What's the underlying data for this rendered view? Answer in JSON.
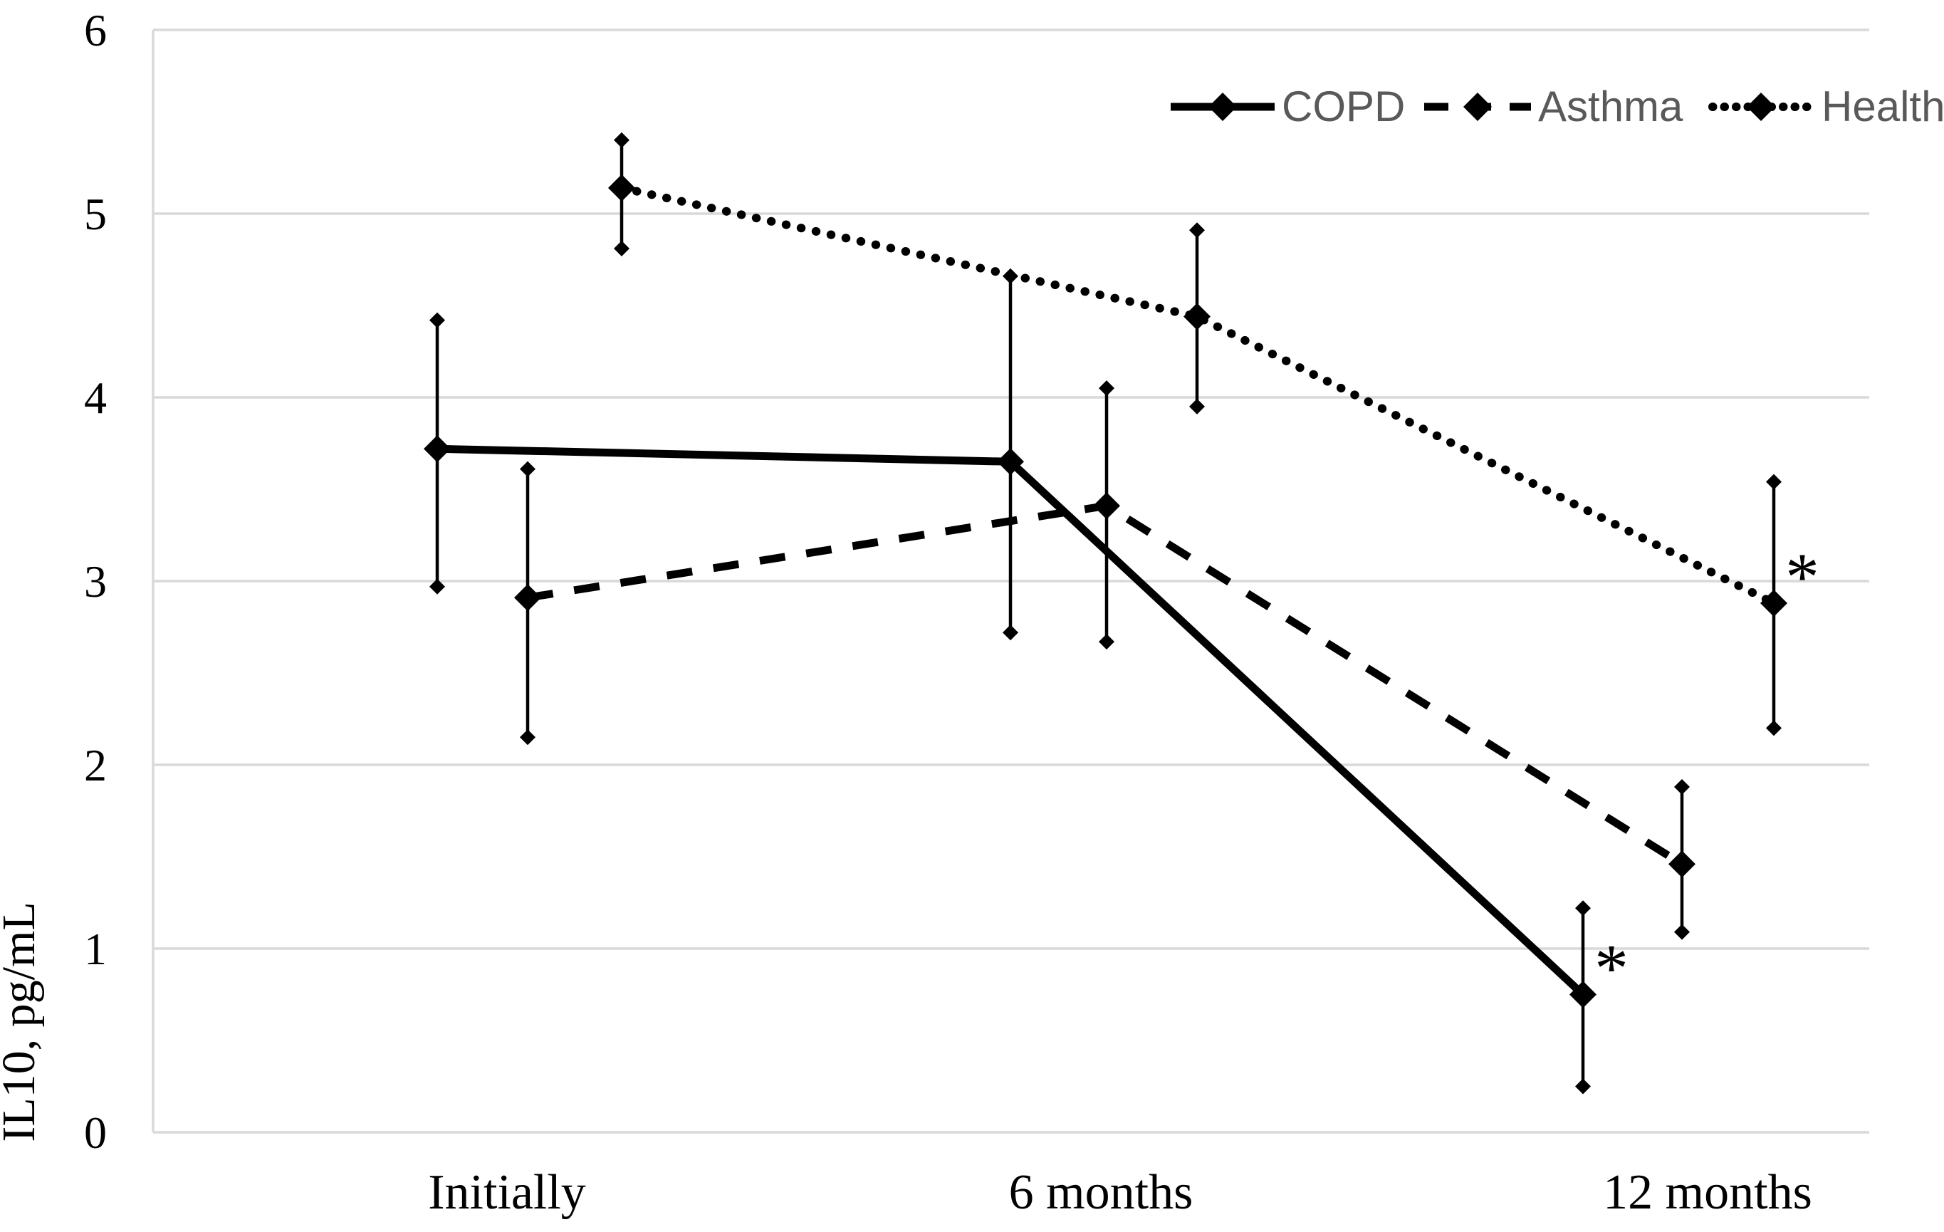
{
  "chart_data": {
    "type": "line",
    "title": "",
    "xlabel": "",
    "ylabel": "IL10, pg/mL",
    "ylim": [
      0,
      6
    ],
    "yticks": [
      0,
      1,
      2,
      3,
      4,
      5,
      6
    ],
    "categories": [
      "Initially",
      "6 months",
      "12 months"
    ],
    "grid": true,
    "legend_position": "top-right",
    "significance_symbol": "*",
    "series": [
      {
        "name": "COPD",
        "line_style": "solid",
        "marker": "diamond",
        "values": [
          3.72,
          3.65,
          0.75
        ],
        "err_low": [
          2.97,
          2.72,
          0.25
        ],
        "err_high": [
          4.42,
          4.66,
          1.22
        ],
        "significant": [
          false,
          false,
          true
        ]
      },
      {
        "name": "Asthma",
        "line_style": "dashed",
        "marker": "diamond",
        "values": [
          2.91,
          3.41,
          1.46
        ],
        "err_low": [
          2.15,
          2.67,
          1.09
        ],
        "err_high": [
          3.61,
          4.05,
          1.88
        ],
        "significant": [
          false,
          false,
          false
        ]
      },
      {
        "name": "Health",
        "line_style": "dotted",
        "marker": "diamond",
        "values": [
          5.14,
          4.44,
          2.88
        ],
        "err_low": [
          4.81,
          3.95,
          2.2
        ],
        "err_high": [
          5.4,
          4.91,
          3.54
        ],
        "significant": [
          false,
          false,
          true
        ]
      }
    ],
    "colors": {
      "series": "#000000",
      "grid": "#d9d9d9",
      "axis_line": "#d9d9d9",
      "legend_text": "#595959",
      "tick_text": "#000000",
      "background": "#ffffff"
    }
  }
}
